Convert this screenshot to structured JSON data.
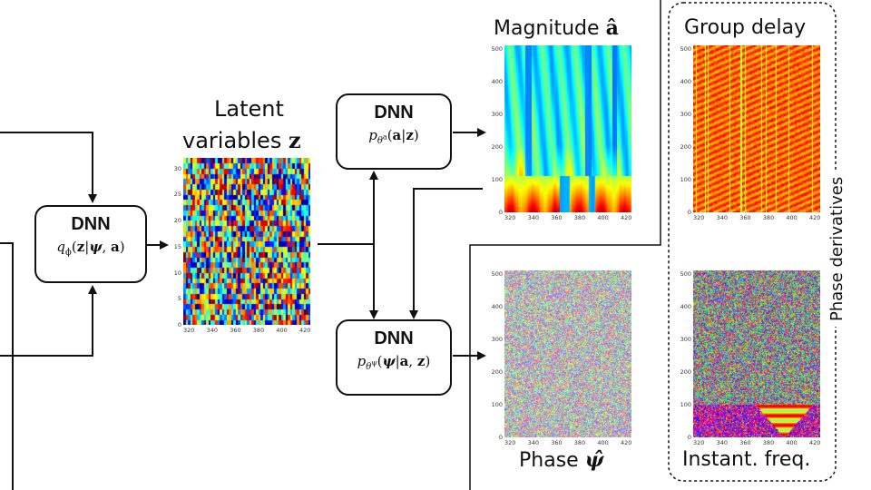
{
  "latent": {
    "title_line1": "Latent",
    "title_line2": "variables",
    "symbol": "z",
    "yticks": [
      "0",
      "5",
      "10",
      "15",
      "20",
      "25",
      "30"
    ],
    "xticks": [
      "320",
      "340",
      "360",
      "380",
      "400",
      "420"
    ]
  },
  "dnn_encoder": {
    "label": "DNN",
    "formula": "qϕ(z|ψ, a)"
  },
  "dnn_magnitude": {
    "label": "DNN",
    "formula": "pθᵃ(a|z)"
  },
  "dnn_phase": {
    "label": "DNN",
    "formula": "pθᴪ(ψ|a, z)"
  },
  "magnitude": {
    "title": "Magnitude",
    "symbol": "â",
    "yticks": [
      "0",
      "100",
      "200",
      "300",
      "400",
      "500"
    ],
    "xticks": [
      "320",
      "340",
      "360",
      "380",
      "400",
      "420"
    ]
  },
  "phase": {
    "title": "Phase",
    "symbol": "ψ̂",
    "yticks": [
      "0",
      "100",
      "200",
      "300",
      "400",
      "500"
    ],
    "xticks": [
      "320",
      "340",
      "360",
      "380",
      "400",
      "420"
    ]
  },
  "group_delay": {
    "title": "Group delay",
    "yticks": [
      "0",
      "100",
      "200",
      "300",
      "400",
      "500"
    ],
    "xticks": [
      "320",
      "340",
      "360",
      "380",
      "400",
      "420"
    ]
  },
  "instant_freq": {
    "title": "Instant. freq.",
    "yticks": [
      "0",
      "100",
      "200",
      "300",
      "400",
      "500"
    ],
    "xticks": [
      "320",
      "340",
      "360",
      "380",
      "400",
      "420"
    ]
  },
  "phase_derivatives_label": "Phase derivatives",
  "colors": {
    "stroke": "#111111",
    "jet_low": "#00007f",
    "jet_high": "#7f0000"
  }
}
